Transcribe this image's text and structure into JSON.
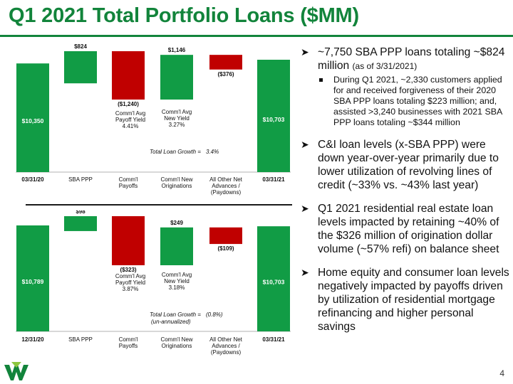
{
  "title": "Q1 2021 Total Portfolio Loans ($MM)",
  "page_number": "4",
  "logo_icon": "company-logo-icon",
  "colors": {
    "accent_green": "#12843b",
    "bar_green": "#119c45",
    "bar_red": "#c00000",
    "connector": "#555555"
  },
  "chart_data": [
    {
      "type": "bar",
      "subtype": "waterfall",
      "categories": [
        "03/31/20",
        "SBA PPP",
        "Comm'l Payoffs",
        "Comm'l New Originations",
        "All Other Net Advances / (Paydowns)",
        "03/31/21"
      ],
      "values": [
        10350,
        824,
        -1240,
        1146,
        -376,
        10703
      ],
      "bar_kinds": [
        "total",
        "delta",
        "delta",
        "delta",
        "delta",
        "total"
      ],
      "value_labels": [
        "$10,350",
        "$824",
        "($1,240)",
        "$1,146",
        "($376)",
        "$10,703"
      ],
      "ylim": [
        0,
        11200
      ],
      "annotations": [
        {
          "text": "Comm'l Avg Payoff Yield 4.41%"
        },
        {
          "text": "Comm'l Avg New Yield 3.27%"
        },
        {
          "text": "Total Loan Growth = 3.4%"
        }
      ]
    },
    {
      "type": "bar",
      "subtype": "waterfall",
      "categories": [
        "12/31/20",
        "SBA PPP",
        "Comm'l Payoffs",
        "Comm'l New Originations",
        "All Other Net Advances / (Paydowns)",
        "03/31/21"
      ],
      "values": [
        10789,
        98,
        -323,
        249,
        -109,
        10703
      ],
      "bar_kinds": [
        "total",
        "delta",
        "delta",
        "delta",
        "delta",
        "total"
      ],
      "value_labels": [
        "$10,789",
        "$98",
        "($323)",
        "$249",
        "($109)",
        "$10,703"
      ],
      "ylim": [
        0,
        11200
      ],
      "annotations": [
        {
          "text": "Comm'l Avg Payoff Yield 3.87%"
        },
        {
          "text": "Comm'l Avg New Yield 3.18%"
        },
        {
          "text": "Total Loan Growth = (0.8%) (un-annualized)"
        }
      ]
    }
  ],
  "charts_text": [
    {
      "categories": [
        [
          "03/31/20"
        ],
        [
          "SBA PPP"
        ],
        [
          "Comm'l",
          "Payoffs"
        ],
        [
          "Comm'l New",
          "Originations"
        ],
        [
          "All Other Net",
          "Advances /",
          "(Paydowns)"
        ],
        [
          "03/31/21"
        ]
      ],
      "payoff_note": [
        "Comm'l Avg",
        "Payoff Yield",
        "4.41%"
      ],
      "new_note": [
        "Comm'l Avg",
        "New Yield",
        "3.27%"
      ],
      "growth_label": "Total Loan Growth =",
      "growth_value": "3.4%",
      "growth_sub": ""
    },
    {
      "categories": [
        [
          "12/31/20"
        ],
        [
          "SBA PPP"
        ],
        [
          "Comm'l",
          "Payoffs"
        ],
        [
          "Comm'l New",
          "Originations"
        ],
        [
          "All Other Net",
          "Advances /",
          "(Paydowns)"
        ],
        [
          "03/31/21"
        ]
      ],
      "payoff_note": [
        "Comm'l Avg",
        "Payoff Yield",
        "3.87%"
      ],
      "new_note": [
        "Comm'l Avg",
        "New Yield",
        "3.18%"
      ],
      "growth_label": "Total Loan Growth =",
      "growth_value": "(0.8%)",
      "growth_sub": "(un-annualized)"
    }
  ],
  "bullets": [
    {
      "text": "~7,750 SBA PPP loans totaling ~$824 million",
      "small": "(as of 3/31/2021)",
      "sub": "During Q1 2021, ~2,330 customers applied for and received forgiveness of their 2020 SBA PPP loans totaling $223 million; and, assisted >3,240 businesses with 2021 SBA PPP loans totaling ~$344 million"
    },
    {
      "text": "C&I loan levels (x-SBA PPP) were down year-over-year primarily due to lower utilization of revolving lines of credit (~33% vs. ~43% last year)"
    },
    {
      "text": "Q1 2021 residential real estate loan levels impacted by retaining ~40% of the $326 million of origination dollar volume (~57% refi) on balance sheet"
    },
    {
      "text": "Home equity and consumer loan levels negatively impacted by payoffs driven by utilization of residential mortgage refinancing and higher personal savings"
    }
  ]
}
